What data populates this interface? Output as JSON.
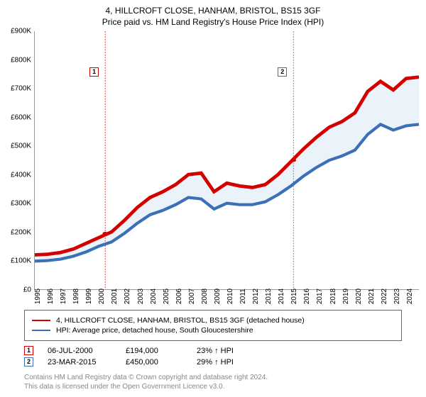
{
  "title": "4, HILLCROFT CLOSE, HANHAM, BRISTOL, BS15 3GF",
  "subtitle": "Price paid vs. HM Land Registry's House Price Index (HPI)",
  "chart": {
    "type": "line",
    "background_color": "#ffffff",
    "shaded_band_color": "#eaf3fa",
    "grid_color": "#ffffff",
    "xlim": [
      1995,
      2025
    ],
    "ylim": [
      0,
      900
    ],
    "ytick_step": 100,
    "yticks": [
      "£0",
      "£100K",
      "£200K",
      "£300K",
      "£400K",
      "£500K",
      "£600K",
      "£700K",
      "£800K",
      "£900K"
    ],
    "xticks": [
      1995,
      1996,
      1997,
      1998,
      1999,
      2000,
      2001,
      2002,
      2003,
      2004,
      2005,
      2006,
      2007,
      2008,
      2009,
      2010,
      2011,
      2012,
      2013,
      2014,
      2015,
      2016,
      2017,
      2018,
      2019,
      2020,
      2021,
      2022,
      2023,
      2024
    ],
    "label_fontsize": 10,
    "series": [
      {
        "name": "property",
        "color": "#d40000",
        "width": 1.6,
        "points": [
          [
            1995,
            120
          ],
          [
            1996,
            122
          ],
          [
            1997,
            128
          ],
          [
            1998,
            140
          ],
          [
            1999,
            160
          ],
          [
            2000,
            180
          ],
          [
            2001,
            200
          ],
          [
            2002,
            240
          ],
          [
            2003,
            285
          ],
          [
            2004,
            320
          ],
          [
            2005,
            340
          ],
          [
            2006,
            365
          ],
          [
            2007,
            400
          ],
          [
            2008,
            405
          ],
          [
            2009,
            340
          ],
          [
            2010,
            370
          ],
          [
            2011,
            360
          ],
          [
            2012,
            355
          ],
          [
            2013,
            365
          ],
          [
            2014,
            400
          ],
          [
            2015,
            445
          ],
          [
            2016,
            490
          ],
          [
            2017,
            530
          ],
          [
            2018,
            565
          ],
          [
            2019,
            585
          ],
          [
            2020,
            615
          ],
          [
            2021,
            690
          ],
          [
            2022,
            725
          ],
          [
            2023,
            695
          ],
          [
            2024,
            735
          ],
          [
            2025,
            740
          ]
        ]
      },
      {
        "name": "hpi",
        "color": "#3b6fb6",
        "width": 1.4,
        "points": [
          [
            1995,
            98
          ],
          [
            1996,
            100
          ],
          [
            1997,
            105
          ],
          [
            1998,
            115
          ],
          [
            1999,
            130
          ],
          [
            2000,
            150
          ],
          [
            2001,
            165
          ],
          [
            2002,
            195
          ],
          [
            2003,
            230
          ],
          [
            2004,
            260
          ],
          [
            2005,
            275
          ],
          [
            2006,
            295
          ],
          [
            2007,
            320
          ],
          [
            2008,
            315
          ],
          [
            2009,
            280
          ],
          [
            2010,
            300
          ],
          [
            2011,
            295
          ],
          [
            2012,
            295
          ],
          [
            2013,
            305
          ],
          [
            2014,
            330
          ],
          [
            2015,
            360
          ],
          [
            2016,
            395
          ],
          [
            2017,
            425
          ],
          [
            2018,
            450
          ],
          [
            2019,
            465
          ],
          [
            2020,
            485
          ],
          [
            2021,
            540
          ],
          [
            2022,
            575
          ],
          [
            2023,
            555
          ],
          [
            2024,
            570
          ],
          [
            2025,
            575
          ]
        ]
      }
    ],
    "sale_markers": [
      {
        "n": "1",
        "x": 2000.5,
        "y": 194,
        "line_color": "#d40000"
      },
      {
        "n": "2",
        "x": 2015.2,
        "y": 450,
        "line_color": "#3b6fb6"
      }
    ],
    "marker_dot_color": "#d40000"
  },
  "legend": {
    "items": [
      {
        "color": "#d40000",
        "label": "4, HILLCROFT CLOSE, HANHAM, BRISTOL, BS15 3GF (detached house)"
      },
      {
        "color": "#3b6fb6",
        "label": "HPI: Average price, detached house, South Gloucestershire"
      }
    ]
  },
  "sales": [
    {
      "n": "1",
      "border": "#d40000",
      "date": "06-JUL-2000",
      "price": "£194,000",
      "delta": "23% ↑ HPI"
    },
    {
      "n": "2",
      "border": "#3b6fb6",
      "date": "23-MAR-2015",
      "price": "£450,000",
      "delta": "29% ↑ HPI"
    }
  ],
  "footer_line1": "Contains HM Land Registry data © Crown copyright and database right 2024.",
  "footer_line2": "This data is licensed under the Open Government Licence v3.0."
}
